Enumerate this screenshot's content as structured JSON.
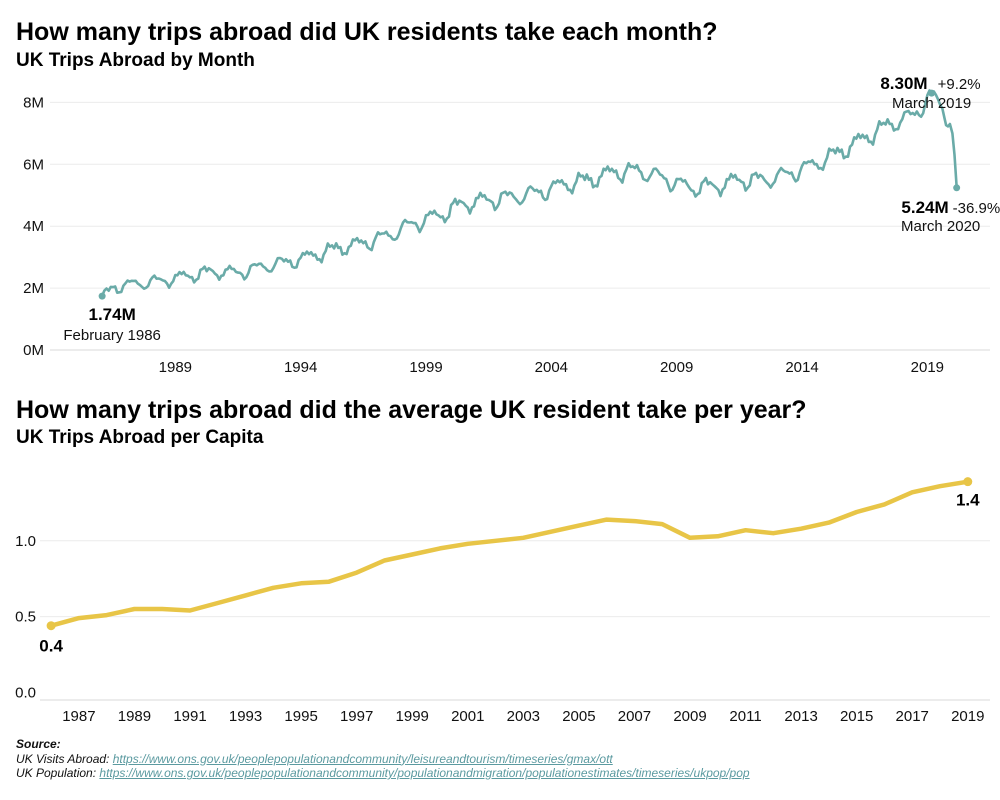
{
  "chart_data": [
    {
      "type": "line",
      "title": "How many trips abroad did UK residents take each month?",
      "subtitle": "UK Trips Abroad by Month",
      "color": "#6aaba8",
      "y_ticks": [
        {
          "value": 0,
          "label": "0M"
        },
        {
          "value": 2,
          "label": "2M"
        },
        {
          "value": 4,
          "label": "4M"
        },
        {
          "value": 6,
          "label": "6M"
        },
        {
          "value": 8,
          "label": "8M"
        }
      ],
      "x_ticks": [
        1989,
        1994,
        1999,
        2004,
        2009,
        2014,
        2019
      ],
      "ylim": [
        0,
        8.4
      ],
      "xlim": [
        1984.0,
        2021.5
      ],
      "grid": true,
      "anchors": [
        {
          "x": 1986.08,
          "y": 1.74
        },
        {
          "x": 1986.6,
          "y": 2.05
        },
        {
          "x": 1987.5,
          "y": 2.15
        },
        {
          "x": 1988.5,
          "y": 2.25
        },
        {
          "x": 1989.5,
          "y": 2.4
        },
        {
          "x": 1990.5,
          "y": 2.55
        },
        {
          "x": 1991.5,
          "y": 2.5
        },
        {
          "x": 1992.5,
          "y": 2.7
        },
        {
          "x": 1993.5,
          "y": 2.85
        },
        {
          "x": 1994.5,
          "y": 3.05
        },
        {
          "x": 1995.5,
          "y": 3.3
        },
        {
          "x": 1996.5,
          "y": 3.45
        },
        {
          "x": 1997.5,
          "y": 3.7
        },
        {
          "x": 1998.5,
          "y": 4.1
        },
        {
          "x": 1999.5,
          "y": 4.35
        },
        {
          "x": 2000.5,
          "y": 4.75
        },
        {
          "x": 2001.5,
          "y": 4.85
        },
        {
          "x": 2002.5,
          "y": 4.95
        },
        {
          "x": 2003.5,
          "y": 5.1
        },
        {
          "x": 2004.5,
          "y": 5.35
        },
        {
          "x": 2005.5,
          "y": 5.5
        },
        {
          "x": 2006.5,
          "y": 5.75
        },
        {
          "x": 2007.5,
          "y": 5.8
        },
        {
          "x": 2008.5,
          "y": 5.55
        },
        {
          "x": 2009.5,
          "y": 5.25
        },
        {
          "x": 2010.5,
          "y": 5.3
        },
        {
          "x": 2011.5,
          "y": 5.5
        },
        {
          "x": 2012.5,
          "y": 5.5
        },
        {
          "x": 2013.5,
          "y": 5.7
        },
        {
          "x": 2014.5,
          "y": 6.0
        },
        {
          "x": 2015.5,
          "y": 6.4
        },
        {
          "x": 2016.5,
          "y": 6.85
        },
        {
          "x": 2017.5,
          "y": 7.3
        },
        {
          "x": 2018.5,
          "y": 7.6
        },
        {
          "x": 2019.17,
          "y": 8.3
        },
        {
          "x": 2019.6,
          "y": 7.8
        },
        {
          "x": 2019.9,
          "y": 7.3
        },
        {
          "x": 2020.0,
          "y": 7.0
        },
        {
          "x": 2020.17,
          "y": 5.24
        }
      ],
      "annotations": [
        {
          "value": "1.74M",
          "label": "February 1986",
          "x": 1986.08,
          "y": 1.74
        },
        {
          "value": "8.30M",
          "change": "+9.2%",
          "label": "March 2019",
          "x": 2019.17,
          "y": 8.3
        },
        {
          "value": "5.24M",
          "change": "-36.9%",
          "label": "March 2020",
          "x": 2020.17,
          "y": 5.24
        }
      ]
    },
    {
      "type": "line",
      "title": "How many trips abroad did the average UK resident take per year?",
      "subtitle": "UK Trips Abroad per Capita",
      "color": "#e8c547",
      "y_ticks": [
        {
          "value": 0,
          "label": "0.0"
        },
        {
          "value": 0.5,
          "label": "0.5"
        },
        {
          "value": 1.0,
          "label": "1.0"
        }
      ],
      "x_ticks": [
        1987,
        1989,
        1991,
        1993,
        1995,
        1997,
        1999,
        2001,
        2003,
        2005,
        2007,
        2009,
        2011,
        2013,
        2015,
        2017,
        2019
      ],
      "xlim": [
        1985.6,
        2019.8
      ],
      "ylim": [
        -0.05,
        1.5
      ],
      "grid": true,
      "x": [
        1986,
        1987,
        1988,
        1989,
        1990,
        1991,
        1992,
        1993,
        1994,
        1995,
        1996,
        1997,
        1998,
        1999,
        2000,
        2001,
        2002,
        2003,
        2004,
        2005,
        2006,
        2007,
        2008,
        2009,
        2010,
        2011,
        2012,
        2013,
        2014,
        2015,
        2016,
        2017,
        2018,
        2019
      ],
      "values": [
        0.44,
        0.49,
        0.51,
        0.55,
        0.55,
        0.54,
        0.59,
        0.64,
        0.69,
        0.72,
        0.73,
        0.79,
        0.87,
        0.91,
        0.95,
        0.98,
        1.0,
        1.02,
        1.06,
        1.1,
        1.14,
        1.13,
        1.11,
        1.02,
        1.03,
        1.07,
        1.05,
        1.08,
        1.12,
        1.19,
        1.24,
        1.32,
        1.36,
        1.39
      ],
      "annotations": [
        {
          "value": "0.4",
          "x": 1986,
          "y": 0.44
        },
        {
          "value": "1.4",
          "x": 2019,
          "y": 1.39
        }
      ]
    }
  ],
  "source": {
    "heading": "Source:",
    "lines": [
      {
        "label": "UK Visits Abroad: ",
        "link": "https://www.ons.gov.uk/peoplepopulationandcommunity/leisureandtourism/timeseries/gmax/ott"
      },
      {
        "label": "UK Population: ",
        "link": "https://www.ons.gov.uk/peoplepopulationandcommunity/populationandmigration/populationestimates/timeseries/ukpop/pop"
      }
    ]
  }
}
